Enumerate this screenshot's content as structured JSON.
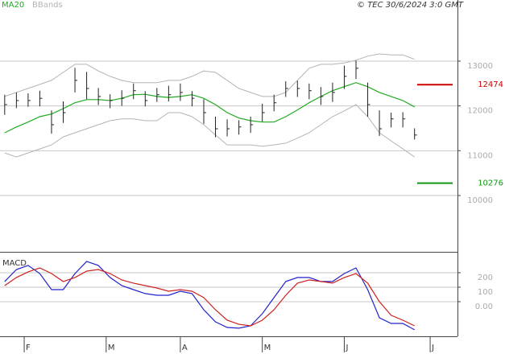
{
  "chart_data": [
    {
      "type": "ohlc",
      "source": "© TEC 30/6/2024 3:0 GMT",
      "x": [
        -5,
        -2,
        1,
        4,
        7,
        10,
        13,
        16,
        19,
        22,
        25,
        28,
        31,
        34,
        37,
        40,
        43,
        46,
        49,
        52,
        55,
        58,
        61,
        64,
        67,
        70,
        73,
        76,
        79,
        82,
        85,
        88,
        91,
        94,
        97,
        100
      ],
      "close": [
        12030,
        12120,
        12120,
        12170,
        11580,
        11850,
        12570,
        12390,
        12210,
        12120,
        12170,
        12340,
        12120,
        12250,
        12250,
        12300,
        12170,
        11850,
        11490,
        11490,
        11530,
        11580,
        11850,
        12070,
        12390,
        12390,
        12340,
        12210,
        12300,
        12660,
        12840,
        12030,
        11490,
        11710,
        11710,
        11350
      ],
      "high": [
        12250,
        12300,
        12280,
        12340,
        11900,
        12100,
        12850,
        12760,
        12400,
        12260,
        12350,
        12500,
        12330,
        12400,
        12450,
        12500,
        12330,
        12150,
        11760,
        11700,
        11680,
        11760,
        12050,
        12250,
        12550,
        12560,
        12500,
        12420,
        12520,
        12900,
        13010,
        12520,
        11900,
        11850,
        11860,
        11500
      ],
      "low": [
        11800,
        11950,
        11980,
        11990,
        11380,
        11620,
        12300,
        12150,
        12020,
        11950,
        12000,
        12150,
        11990,
        12090,
        12100,
        12110,
        11990,
        11600,
        11300,
        11320,
        11360,
        11400,
        11650,
        11880,
        12200,
        12200,
        12150,
        12020,
        12090,
        12380,
        12600,
        11760,
        11330,
        11520,
        11520,
        11250
      ],
      "bar_color": "#222222",
      "series": [
        {
          "name": "MA20",
          "color": "#22aa22",
          "values": [
            11400,
            11530,
            11640,
            11760,
            11820,
            11940,
            12070,
            12140,
            12140,
            12120,
            12170,
            12250,
            12260,
            12210,
            12190,
            12210,
            12250,
            12170,
            12030,
            11850,
            11730,
            11670,
            11640,
            11640,
            11760,
            11910,
            12070,
            12210,
            12340,
            12430,
            12520,
            12430,
            12300,
            12210,
            12120,
            11980
          ]
        },
        {
          "name": "BBands",
          "color": "#b4b4b4",
          "upper": [
            12210,
            12300,
            12390,
            12480,
            12570,
            12750,
            12930,
            12930,
            12780,
            12660,
            12570,
            12520,
            12520,
            12520,
            12570,
            12570,
            12660,
            12780,
            12750,
            12570,
            12390,
            12300,
            12210,
            12210,
            12300,
            12570,
            12840,
            12930,
            12930,
            12960,
            13020,
            13110,
            13160,
            13140,
            13140,
            13040
          ],
          "lower": [
            10950,
            10860,
            10950,
            11040,
            11130,
            11310,
            11400,
            11490,
            11580,
            11670,
            11710,
            11710,
            11670,
            11670,
            11850,
            11850,
            11760,
            11580,
            11350,
            11130,
            11130,
            11130,
            11100,
            11130,
            11170,
            11280,
            11400,
            11580,
            11760,
            11890,
            12030,
            11760,
            11400,
            11220,
            11040,
            10860
          ]
        }
      ],
      "levels": [
        {
          "value": 12474,
          "color": "#cc0000"
        },
        {
          "value": 10276,
          "color": "#119911"
        }
      ],
      "xlim": [
        -6.2,
        111
      ],
      "ylim": [
        8761,
        14364
      ],
      "yticks": [
        10000,
        11000,
        12000,
        13000
      ],
      "grid": true
    },
    {
      "type": "macd",
      "title": "MACD",
      "x": [
        -5,
        -2,
        1,
        4,
        7,
        10,
        13,
        16,
        19,
        22,
        25,
        28,
        31,
        34,
        37,
        40,
        43,
        46,
        49,
        52,
        55,
        58,
        61,
        64,
        67,
        70,
        73,
        76,
        79,
        82,
        85,
        88,
        91,
        94,
        97,
        100
      ],
      "series": [
        {
          "color": "#2222cc",
          "values": [
            139,
            222,
            250,
            194,
            83,
            83,
            194,
            278,
            250,
            167,
            111,
            83,
            56,
            44,
            44,
            72,
            56,
            -56,
            -139,
            -178,
            -183,
            -167,
            -83,
            28,
            139,
            167,
            167,
            139,
            139,
            194,
            233,
            83,
            -111,
            -150,
            -150,
            -194
          ]
        },
        {
          "color": "#cc2222",
          "values": [
            111,
            167,
            206,
            233,
            194,
            139,
            167,
            211,
            222,
            194,
            150,
            128,
            111,
            94,
            72,
            83,
            72,
            28,
            -56,
            -128,
            -156,
            -167,
            -128,
            -56,
            44,
            128,
            150,
            139,
            128,
            167,
            194,
            128,
            0,
            -94,
            -128,
            -167
          ]
        }
      ],
      "xlim": [
        -6.2,
        111
      ],
      "ylim": [
        -239,
        333
      ],
      "yticks": [
        {
          "value": 0,
          "label": "0.00"
        },
        100,
        200
      ],
      "xticks": [
        {
          "value": 0,
          "label": "F"
        },
        {
          "value": 21,
          "label": "M"
        },
        {
          "value": 40,
          "label": "A"
        },
        {
          "value": 61,
          "label": "M"
        },
        {
          "value": 82,
          "label": "J"
        },
        {
          "value": 104,
          "label": "J"
        }
      ],
      "grid": true
    }
  ]
}
